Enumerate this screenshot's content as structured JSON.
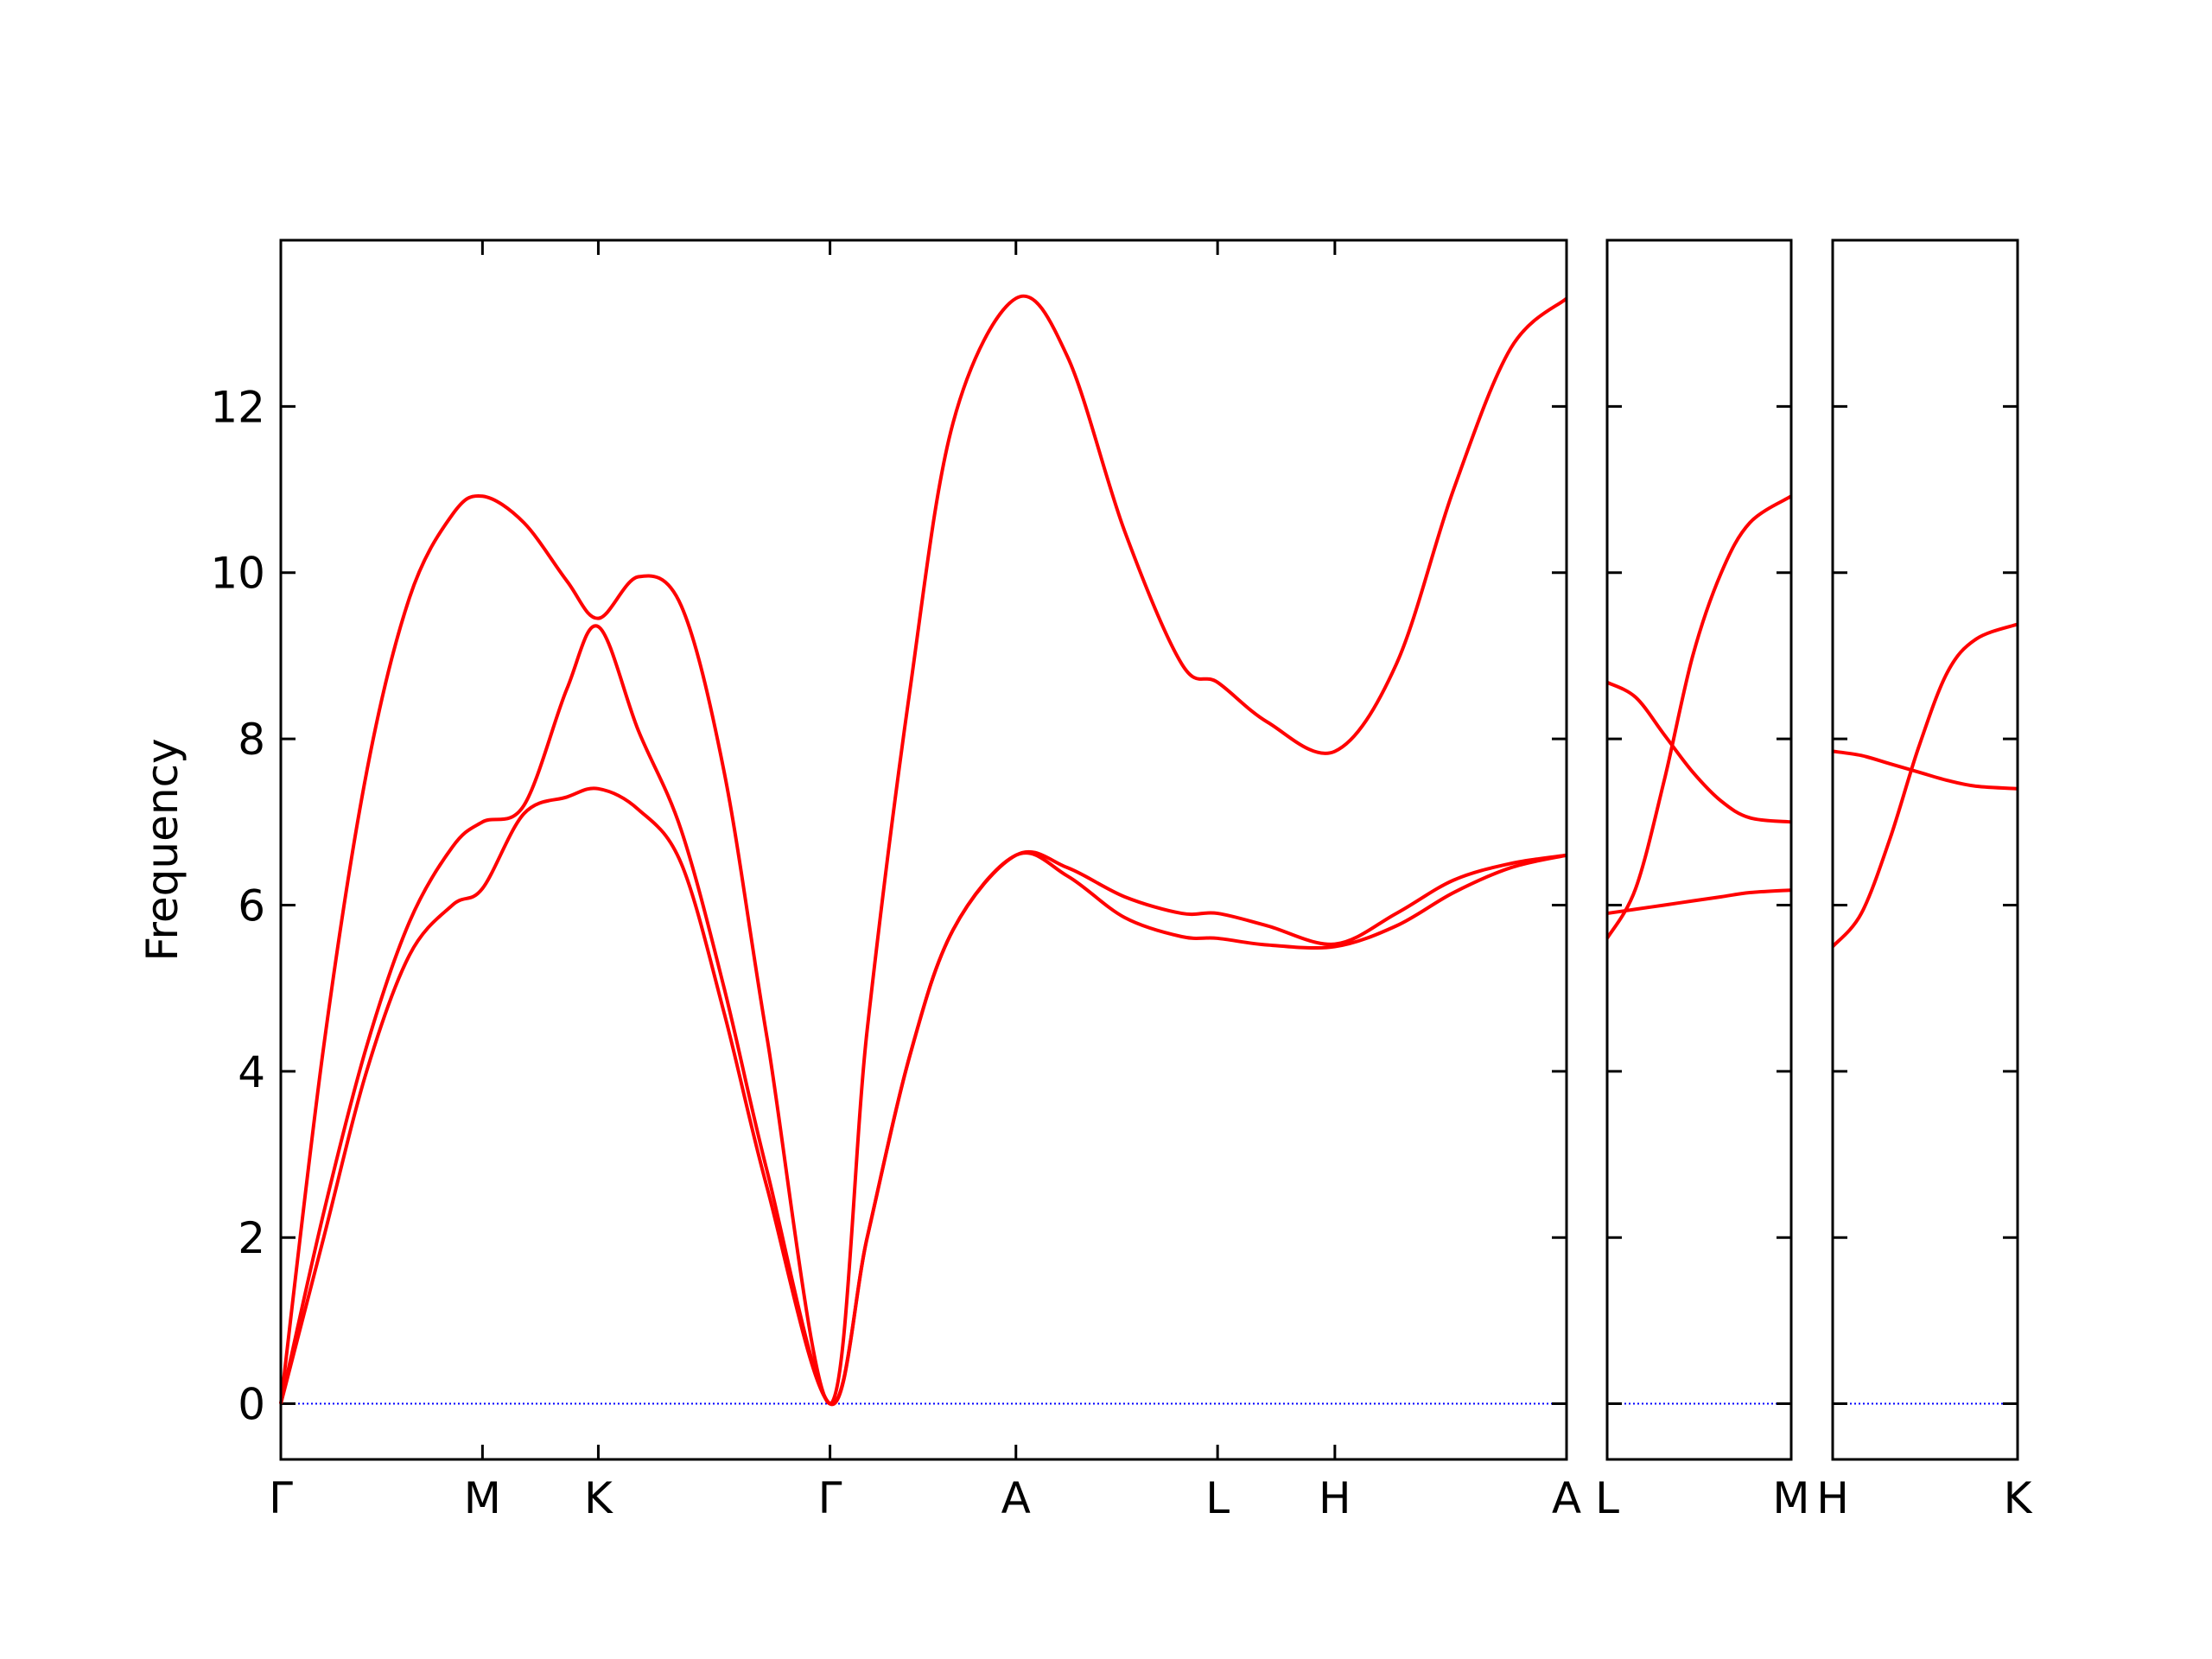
{
  "chart_data": [
    {
      "type": "line",
      "ylabel": "Frequency",
      "x": [
        0,
        0.3,
        0.6,
        0.9,
        1.2,
        1.41,
        1.7,
        2.0,
        2.22,
        2.5,
        2.8,
        3.1,
        3.4,
        3.84,
        4.1,
        4.4,
        4.7,
        5.14,
        5.5,
        5.9,
        6.3,
        6.55,
        6.9,
        7.37,
        7.8,
        8.2,
        8.6,
        8.99
      ],
      "xlim": [
        0,
        8.99
      ],
      "xticks": [
        {
          "value": 0,
          "label": "Γ"
        },
        {
          "value": 1.41,
          "label": "M"
        },
        {
          "value": 2.22,
          "label": "K"
        },
        {
          "value": 3.84,
          "label": "Γ"
        },
        {
          "value": 5.14,
          "label": "A"
        },
        {
          "value": 6.55,
          "label": "L"
        },
        {
          "value": 7.37,
          "label": "H"
        },
        {
          "value": 8.99,
          "label": "A"
        }
      ],
      "ylim": [
        -0.67,
        14
      ],
      "yticks": [
        0,
        2,
        4,
        6,
        8,
        10,
        12
      ],
      "ytick_labels": true,
      "hline": 0,
      "hline_color": "#0000ff",
      "series": [
        {
          "color": "#ff0000",
          "values": [
            0,
            4.3,
            7.6,
            9.7,
            10.7,
            10.92,
            10.6,
            9.9,
            9.45,
            9.95,
            9.6,
            7.6,
            4.4,
            0,
            4.5,
            8.6,
            11.8,
            13.3,
            12.6,
            10.5,
            8.9,
            8.68,
            8.2,
            7.85,
            8.9,
            11.0,
            12.7,
            13.3
          ]
        },
        {
          "color": "#ff0000",
          "values": [
            0,
            2.3,
            4.3,
            5.8,
            6.7,
            7.0,
            7.2,
            8.6,
            9.35,
            8.1,
            6.9,
            5.0,
            2.8,
            0,
            2.0,
            4.2,
            5.7,
            6.6,
            6.45,
            6.1,
            5.9,
            5.9,
            5.75,
            5.53,
            5.9,
            6.3,
            6.5,
            6.6
          ]
        },
        {
          "color": "#ff0000",
          "values": [
            0,
            2.0,
            4.0,
            5.4,
            6.0,
            6.2,
            7.1,
            7.3,
            7.4,
            7.15,
            6.5,
            4.7,
            2.6,
            0,
            2.0,
            4.2,
            5.7,
            6.6,
            6.35,
            5.85,
            5.62,
            5.6,
            5.52,
            5.5,
            5.75,
            6.15,
            6.45,
            6.6
          ]
        }
      ]
    },
    {
      "type": "line",
      "x": [
        0,
        0.2,
        0.4,
        0.6,
        0.8,
        1.0,
        1.29
      ],
      "xlim": [
        0,
        1.29
      ],
      "xticks": [
        {
          "value": 0,
          "label": "L"
        },
        {
          "value": 1.29,
          "label": "M"
        }
      ],
      "ylim": [
        -0.67,
        14
      ],
      "yticks": [
        0,
        2,
        4,
        6,
        8,
        10,
        12
      ],
      "ytick_labels": false,
      "hline": 0,
      "hline_color": "#0000ff",
      "series": [
        {
          "color": "#ff0000",
          "values": [
            8.68,
            8.5,
            8.05,
            7.6,
            7.25,
            7.05,
            7.0
          ]
        },
        {
          "color": "#ff0000",
          "values": [
            5.6,
            6.2,
            7.5,
            9.0,
            10.0,
            10.6,
            10.92
          ]
        },
        {
          "color": "#ff0000",
          "values": [
            5.9,
            5.95,
            6.0,
            6.05,
            6.1,
            6.15,
            6.18
          ]
        }
      ]
    },
    {
      "type": "line",
      "x": [
        0,
        0.2,
        0.4,
        0.6,
        0.8,
        1.0,
        1.29
      ],
      "xlim": [
        0,
        1.29
      ],
      "xticks": [
        {
          "value": 0,
          "label": "H"
        },
        {
          "value": 1.29,
          "label": "K"
        }
      ],
      "ylim": [
        -0.67,
        14
      ],
      "yticks": [
        0,
        2,
        4,
        6,
        8,
        10,
        12
      ],
      "ytick_labels": false,
      "hline": 0,
      "hline_color": "#0000ff",
      "series": [
        {
          "color": "#ff0000",
          "values": [
            7.85,
            7.8,
            7.7,
            7.6,
            7.5,
            7.43,
            7.4
          ]
        },
        {
          "color": "#ff0000",
          "values": [
            5.5,
            5.9,
            6.8,
            7.9,
            8.8,
            9.2,
            9.38
          ]
        }
      ]
    }
  ]
}
